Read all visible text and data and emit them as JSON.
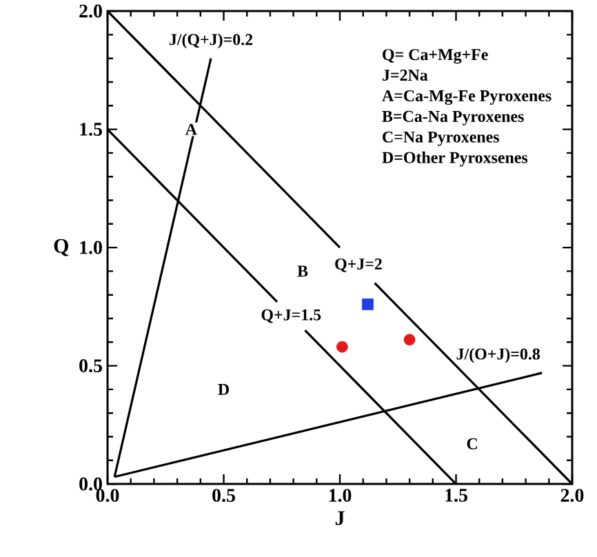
{
  "chart_data": {
    "type": "scatter",
    "xlabel": "J",
    "ylabel": "Q",
    "xlim": [
      0,
      2
    ],
    "ylim": [
      0,
      2
    ],
    "xticks": [
      {
        "value": 0,
        "label": "0.0"
      },
      {
        "value": 0.5,
        "label": "0.5"
      },
      {
        "value": 1,
        "label": "1.0"
      },
      {
        "value": 1.5,
        "label": "1.5"
      },
      {
        "value": 2,
        "label": "2.0"
      }
    ],
    "yticks": [
      {
        "value": 0,
        "label": "0.0"
      },
      {
        "value": 0.5,
        "label": "0.5"
      },
      {
        "value": 1,
        "label": "1.0"
      },
      {
        "value": 1.5,
        "label": "1.5"
      },
      {
        "value": 2,
        "label": "2.0"
      }
    ],
    "series": [
      {
        "type": "line",
        "name": "Q+J=2",
        "color": "#000000",
        "x": [
          0,
          1.0,
          1.08,
          1.15,
          2
        ],
        "values": [
          2,
          1.0,
          null,
          0.85,
          0
        ]
      },
      {
        "type": "line",
        "name": "Q+J=1.5",
        "color": "#000000",
        "x": [
          0,
          0.73,
          0.79,
          0.85,
          1.5
        ],
        "values": [
          1.5,
          0.77,
          null,
          0.65,
          0
        ]
      },
      {
        "type": "line",
        "name": "J/(Q+J)=0.2",
        "color": "#000000",
        "x": [
          0.03,
          0.445
        ],
        "values": [
          0.03,
          1.8
        ]
      },
      {
        "type": "line",
        "name": "J/(O+J)=0.8",
        "color": "#000000",
        "x": [
          0.03,
          1.87
        ],
        "values": [
          0.03,
          0.47
        ]
      },
      {
        "marker": "circle",
        "color": "#e31a1c",
        "x": [
          1.01,
          1.3
        ],
        "values": [
          0.58,
          0.61
        ]
      },
      {
        "marker": "square",
        "color": "#1f3fe0",
        "x": [
          1.12
        ],
        "values": [
          0.76
        ]
      }
    ],
    "annotations": [
      {
        "text": "A",
        "x": 0.36,
        "y": 1.5
      },
      {
        "text": "B",
        "x": 0.84,
        "y": 0.9
      },
      {
        "text": "C",
        "x": 1.57,
        "y": 0.17
      },
      {
        "text": "D",
        "x": 0.5,
        "y": 0.4
      },
      "Q= Ca+Mg+Fe",
      "J=2Na",
      "A=Ca-Mg-Fe Pyroxenes",
      "B=Ca-Na Pyroxenes",
      "C=Na Pyroxenes",
      "D=Other Pyroxsenes"
    ]
  }
}
